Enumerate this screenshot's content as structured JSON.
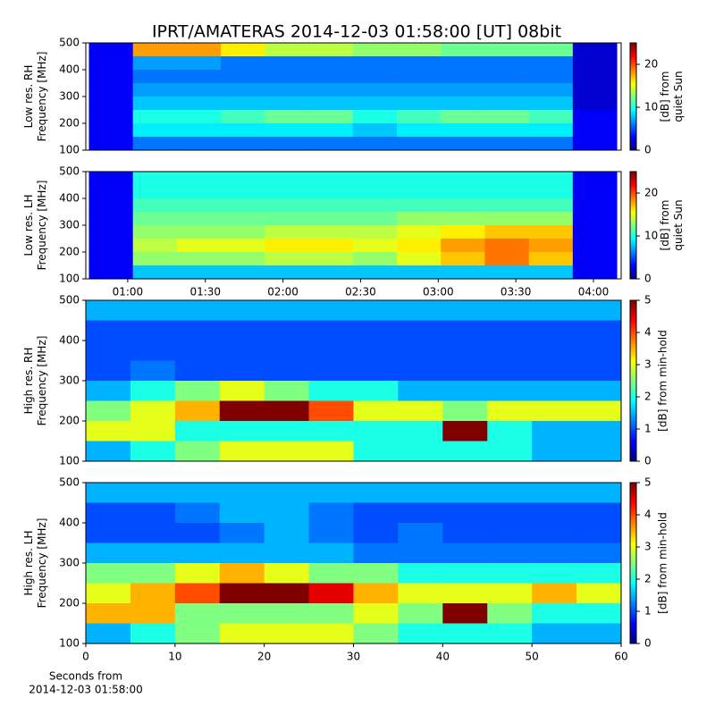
{
  "chart_data": [
    {
      "type": "heatmap",
      "title": "IPRT/AMATERAS 2014-12-03 01:58:00 [UT]   08bit",
      "ylabel": [
        "Low res. RH",
        "Frequency [MHz]"
      ],
      "colorbar_label": [
        "[dB] from",
        "quiet Sun"
      ],
      "colormap": "jet",
      "xlim": [
        43.8,
        250.7
      ],
      "ylim": [
        100,
        500
      ],
      "yticks": [
        100,
        200,
        300,
        400,
        500
      ],
      "clim": [
        0,
        25
      ],
      "cticks": [
        0,
        10,
        20
      ],
      "x_edges": [
        45,
        62,
        79,
        96,
        113,
        130,
        147,
        164,
        181,
        198,
        215,
        232,
        249
      ],
      "y_edges": [
        500,
        450,
        400,
        350,
        300,
        250,
        200,
        150,
        100
      ],
      "values": [
        [
          3,
          18,
          18,
          16,
          14,
          14,
          13,
          13,
          12,
          12,
          12,
          2
        ],
        [
          3,
          7,
          7,
          6,
          6,
          6,
          6,
          6,
          6,
          6,
          6,
          2
        ],
        [
          3,
          6,
          6,
          6,
          6,
          6,
          6,
          6,
          6,
          6,
          6,
          2
        ],
        [
          3,
          7,
          7,
          7,
          7,
          7,
          7,
          7,
          7,
          7,
          7,
          2
        ],
        [
          3,
          8,
          8,
          8,
          8,
          8,
          8,
          8,
          8,
          8,
          8,
          2
        ],
        [
          3,
          10,
          10,
          11,
          12,
          12,
          10,
          11,
          12,
          12,
          11,
          3
        ],
        [
          3,
          9,
          9,
          9,
          9,
          9,
          8,
          9,
          9,
          9,
          9,
          3
        ],
        [
          3,
          6,
          6,
          6,
          6,
          6,
          6,
          6,
          6,
          6,
          6,
          3
        ]
      ]
    },
    {
      "type": "heatmap",
      "ylabel": [
        "Low res. LH",
        "Frequency [MHz]"
      ],
      "colorbar_label": [
        "[dB] from",
        "quiet Sun"
      ],
      "colormap": "jet",
      "xlim": [
        43.8,
        250.7
      ],
      "ylim": [
        100,
        500
      ],
      "yticks": [
        100,
        200,
        300,
        400,
        500
      ],
      "xticks": [
        {
          "value": 60,
          "label": "01:00"
        },
        {
          "value": 90,
          "label": "01:30"
        },
        {
          "value": 120,
          "label": "02:00"
        },
        {
          "value": 150,
          "label": "02:30"
        },
        {
          "value": 180,
          "label": "03:00"
        },
        {
          "value": 210,
          "label": "03:30"
        },
        {
          "value": 240,
          "label": "04:00"
        }
      ],
      "clim": [
        0,
        25
      ],
      "cticks": [
        0,
        10,
        20
      ],
      "x_edges": [
        45,
        62,
        79,
        96,
        113,
        130,
        147,
        164,
        181,
        198,
        215,
        232,
        249
      ],
      "y_edges": [
        500,
        450,
        400,
        350,
        300,
        250,
        200,
        150,
        100
      ],
      "values": [
        [
          3,
          10,
          10,
          10,
          10,
          10,
          10,
          10,
          10,
          10,
          10,
          3
        ],
        [
          3,
          10,
          10,
          10,
          10,
          10,
          10,
          10,
          10,
          10,
          10,
          3
        ],
        [
          3,
          11,
          11,
          11,
          11,
          11,
          11,
          11,
          11,
          11,
          11,
          3
        ],
        [
          3,
          12,
          12,
          12,
          12,
          12,
          12,
          13,
          13,
          13,
          13,
          3
        ],
        [
          3,
          13,
          13,
          13,
          14,
          14,
          14,
          15,
          16,
          17,
          17,
          3
        ],
        [
          3,
          14,
          15,
          15,
          16,
          16,
          15,
          16,
          18,
          19,
          18,
          3
        ],
        [
          3,
          13,
          13,
          13,
          14,
          14,
          13,
          15,
          17,
          19,
          17,
          3
        ],
        [
          3,
          8,
          8,
          8,
          8,
          8,
          8,
          8,
          8,
          8,
          8,
          3
        ]
      ]
    },
    {
      "type": "heatmap",
      "ylabel": [
        "High res. RH",
        "Frequency [MHz]"
      ],
      "colorbar_label": [
        "[dB] from min-hold"
      ],
      "colormap": "jet",
      "xlim": [
        0,
        60
      ],
      "ylim": [
        100,
        500
      ],
      "yticks": [
        100,
        200,
        300,
        400,
        500
      ],
      "clim": [
        0,
        5
      ],
      "cticks": [
        0,
        1,
        2,
        3,
        4,
        5
      ],
      "x_edges": [
        0,
        5,
        10,
        15,
        20,
        25,
        30,
        35,
        40,
        45,
        50,
        55,
        60
      ],
      "y_edges": [
        500,
        450,
        400,
        350,
        300,
        250,
        200,
        150,
        100
      ],
      "values": [
        [
          1.5,
          1.5,
          1.5,
          1.5,
          1.5,
          1.5,
          1.5,
          1.5,
          1.5,
          1.5,
          1.5,
          1.5
        ],
        [
          1,
          1,
          1,
          1,
          1,
          1,
          1,
          1,
          1,
          1,
          1,
          1
        ],
        [
          1,
          1,
          1,
          1,
          1,
          1,
          1,
          1,
          1,
          1,
          1,
          1
        ],
        [
          1,
          1.2,
          1,
          1,
          1,
          1,
          1,
          1,
          1,
          1,
          1,
          1
        ],
        [
          1.5,
          2,
          2.5,
          3,
          2.5,
          2,
          2,
          1.5,
          1.5,
          1.5,
          1.5,
          1.5
        ],
        [
          2.5,
          3,
          3.5,
          5,
          5,
          4,
          3,
          3,
          2.5,
          3,
          3,
          3
        ],
        [
          3,
          3,
          2,
          2,
          2,
          2,
          2,
          2,
          5,
          2,
          1.5,
          1.5
        ],
        [
          1.5,
          2,
          2.5,
          3,
          3,
          3,
          2,
          2,
          2,
          2,
          1.5,
          1.5
        ]
      ]
    },
    {
      "type": "heatmap",
      "ylabel": [
        "High res. LH",
        "Frequency [MHz]"
      ],
      "colorbar_label": [
        "[dB] from min-hold"
      ],
      "colormap": "jet",
      "xlim": [
        0,
        60
      ],
      "ylim": [
        100,
        500
      ],
      "yticks": [
        100,
        200,
        300,
        400,
        500
      ],
      "xticks": [
        0,
        10,
        20,
        30,
        40,
        50,
        60
      ],
      "xlabel": [
        "Seconds from",
        "2014-12-03 01:58:00"
      ],
      "clim": [
        0,
        5
      ],
      "cticks": [
        0,
        1,
        2,
        3,
        4,
        5
      ],
      "x_edges": [
        0,
        5,
        10,
        15,
        20,
        25,
        30,
        35,
        40,
        45,
        50,
        55,
        60
      ],
      "y_edges": [
        500,
        450,
        400,
        350,
        300,
        250,
        200,
        150,
        100
      ],
      "values": [
        [
          1.5,
          1.5,
          1.5,
          1.5,
          1.5,
          1.5,
          1.5,
          1.5,
          1.5,
          1.5,
          1.5,
          1.5
        ],
        [
          1,
          1,
          1.2,
          1.5,
          1.5,
          1.2,
          1,
          1,
          1,
          1,
          1,
          1
        ],
        [
          1,
          1,
          1,
          1.2,
          1.5,
          1.2,
          1,
          1.2,
          1,
          1,
          1,
          1
        ],
        [
          1.5,
          1.5,
          1.5,
          1.5,
          1.5,
          1.5,
          1.2,
          1.2,
          1.2,
          1.2,
          1.2,
          1.2
        ],
        [
          2.5,
          2.5,
          3,
          3.5,
          3,
          2.5,
          2.5,
          2,
          2,
          2,
          2,
          2
        ],
        [
          3,
          3.5,
          4,
          5,
          5,
          4.5,
          3.5,
          3,
          3,
          3,
          3.5,
          3
        ],
        [
          3.5,
          3.5,
          2.5,
          2.5,
          2.5,
          2.5,
          3,
          2.5,
          5,
          2.5,
          2,
          2
        ],
        [
          1.5,
          2,
          2.5,
          3,
          3,
          3,
          2.5,
          2,
          2,
          2,
          1.5,
          1.5
        ]
      ]
    }
  ]
}
